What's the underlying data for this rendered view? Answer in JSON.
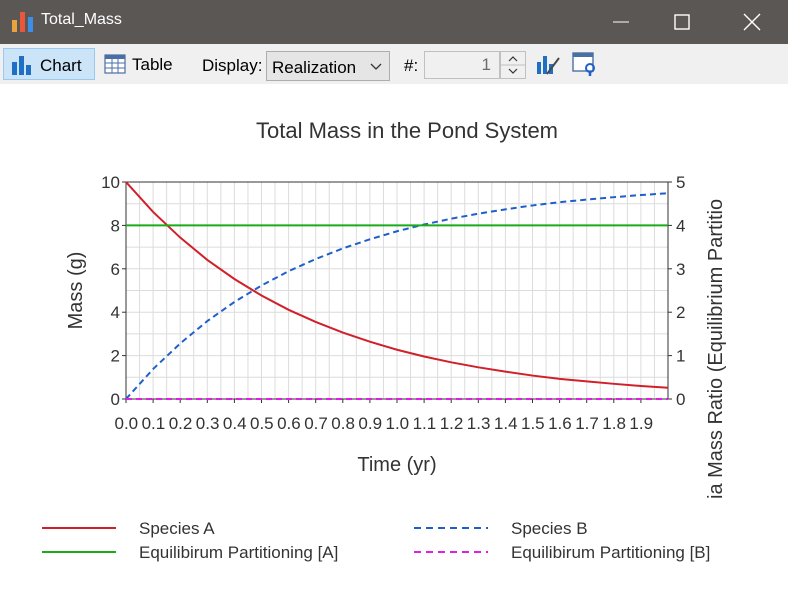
{
  "window": {
    "title": "Total_Mass"
  },
  "toolbar": {
    "chart_label": "Chart",
    "table_label": "Table",
    "display_label": "Display:",
    "display_value": "Realization",
    "number_label": "#:",
    "number_value": "1"
  },
  "chart_data": {
    "type": "line",
    "title": "Total Mass in the Pond System",
    "xlabel": "Time (yr)",
    "ylabel": "Mass (g)",
    "y2label": "ia Mass Ratio (Equilibrium Partitio",
    "xlim": [
      0,
      2
    ],
    "ylim": [
      0,
      10
    ],
    "y2lim": [
      0,
      5
    ],
    "xticks": [
      "0.0",
      "0.1",
      "0.2",
      "0.3",
      "0.4",
      "0.5",
      "0.6",
      "0.7",
      "0.8",
      "0.9",
      "1.0",
      "1.1",
      "1.2",
      "1.3",
      "1.4",
      "1.5",
      "1.6",
      "1.7",
      "1.8",
      "1.9"
    ],
    "yticks": [
      "0",
      "2",
      "4",
      "6",
      "8",
      "10"
    ],
    "y2ticks": [
      "0",
      "1",
      "2",
      "3",
      "4",
      "5"
    ],
    "grid": true,
    "legend_position": "bottom",
    "x": [
      0,
      0.1,
      0.2,
      0.3,
      0.4,
      0.5,
      0.6,
      0.7,
      0.8,
      0.9,
      1.0,
      1.1,
      1.2,
      1.3,
      1.4,
      1.5,
      1.6,
      1.7,
      1.8,
      1.9,
      2.0
    ],
    "series": [
      {
        "name": "Species A",
        "axis": "left",
        "color": "#d0202a",
        "dash": "solid",
        "values": [
          10,
          8.62,
          7.44,
          6.41,
          5.53,
          4.77,
          4.11,
          3.55,
          3.06,
          2.64,
          2.27,
          1.96,
          1.69,
          1.46,
          1.26,
          1.08,
          0.93,
          0.81,
          0.7,
          0.6,
          0.52
        ]
      },
      {
        "name": "Species B",
        "axis": "left",
        "color": "#1f5fcc",
        "dash": "dashed",
        "values": [
          0,
          1.38,
          2.56,
          3.59,
          4.47,
          5.23,
          5.89,
          6.45,
          6.94,
          7.36,
          7.73,
          8.04,
          8.31,
          8.54,
          8.74,
          8.92,
          9.07,
          9.19,
          9.3,
          9.4,
          9.48
        ]
      },
      {
        "name": "Equilibirum Partitioning [A]",
        "axis": "right",
        "color": "#1aaa1a",
        "dash": "solid",
        "values": [
          4,
          4,
          4,
          4,
          4,
          4,
          4,
          4,
          4,
          4,
          4,
          4,
          4,
          4,
          4,
          4,
          4,
          4,
          4,
          4,
          4
        ]
      },
      {
        "name": "Equilibirum Partitioning [B]",
        "axis": "right",
        "color": "#e020e0",
        "dash": "dashed",
        "values": [
          0,
          0,
          0,
          0,
          0,
          0,
          0,
          0,
          0,
          0,
          0,
          0,
          0,
          0,
          0,
          0,
          0,
          0,
          0,
          0,
          0
        ]
      }
    ]
  }
}
